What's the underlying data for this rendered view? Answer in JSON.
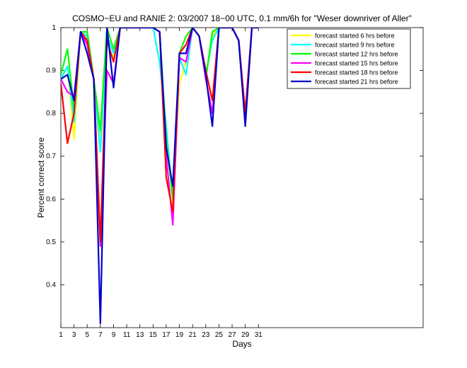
{
  "chart_data": {
    "type": "line",
    "title": "COSMO−EU and RANIE 2: 03/2007 18−00 UTC, 0.1 mm/6h for \"Weser downriver of Aller\"",
    "xlabel": "Days",
    "ylabel": "Percent correct score",
    "xlim": [
      1,
      56
    ],
    "ylim": [
      0.3,
      1.0
    ],
    "x_ticks": [
      "1",
      "3",
      "5",
      "7",
      "9",
      "11",
      "13",
      "15",
      "17",
      "19",
      "21",
      "23",
      "25",
      "27",
      "29",
      "31"
    ],
    "y_ticks": [
      "0.4",
      "0.5",
      "0.6",
      "0.7",
      "0.8",
      "0.9",
      "1"
    ],
    "legend_position": "top-right",
    "x": [
      1,
      2,
      3,
      4,
      5,
      6,
      7,
      8,
      9,
      10,
      11,
      12,
      13,
      14,
      15,
      16,
      17,
      18,
      19,
      20,
      21,
      22,
      23,
      24,
      25,
      26,
      27,
      28,
      29,
      30,
      31
    ],
    "series": [
      {
        "name": "forecast started 6 hrs before",
        "color": "#ffff00",
        "values": [
          0.88,
          0.91,
          0.74,
          0.99,
          0.98,
          0.88,
          0.75,
          0.96,
          0.93,
          1.0,
          1.0,
          1.0,
          1.0,
          1.0,
          1.0,
          0.92,
          0.77,
          0.59,
          0.87,
          0.92,
          1.0,
          0.98,
          0.89,
          0.98,
          1.0,
          1.0,
          1.0,
          0.97,
          0.79,
          1.0,
          1.0
        ]
      },
      {
        "name": "forecast started 9 hrs before",
        "color": "#00ffff",
        "values": [
          0.88,
          0.91,
          0.78,
          0.99,
          0.98,
          0.88,
          0.71,
          0.98,
          0.94,
          1.0,
          1.0,
          1.0,
          1.0,
          1.0,
          1.0,
          0.92,
          0.77,
          0.6,
          0.93,
          0.89,
          1.0,
          0.98,
          0.89,
          0.97,
          1.0,
          1.0,
          1.0,
          0.97,
          0.79,
          1.0,
          1.0
        ]
      },
      {
        "name": "forecast started 12 hrs before",
        "color": "#00ff00",
        "values": [
          0.89,
          0.95,
          0.81,
          0.99,
          0.99,
          0.88,
          0.76,
          1.0,
          0.95,
          1.0,
          1.0,
          1.0,
          1.0,
          1.0,
          1.0,
          0.99,
          0.74,
          0.6,
          0.94,
          0.98,
          1.0,
          0.98,
          0.88,
          0.99,
          1.0,
          1.0,
          1.0,
          0.97,
          0.78,
          1.0,
          1.0
        ]
      },
      {
        "name": "forecast started 15 hrs before",
        "color": "#ff00ff",
        "values": [
          0.88,
          0.85,
          0.84,
          0.99,
          0.96,
          0.88,
          0.49,
          0.9,
          0.87,
          1.0,
          1.0,
          1.0,
          1.0,
          1.0,
          1.0,
          0.99,
          0.7,
          0.54,
          0.93,
          0.92,
          1.0,
          0.98,
          0.88,
          0.8,
          1.0,
          1.0,
          1.0,
          0.97,
          0.8,
          1.0,
          1.0
        ]
      },
      {
        "name": "forecast started 18 hrs before",
        "color": "#ff0000",
        "values": [
          0.87,
          0.73,
          0.8,
          0.99,
          0.97,
          0.88,
          0.5,
          0.97,
          0.92,
          1.0,
          1.0,
          1.0,
          1.0,
          1.0,
          1.0,
          0.99,
          0.65,
          0.57,
          0.94,
          0.96,
          1.0,
          0.98,
          0.9,
          0.83,
          1.0,
          1.0,
          1.0,
          0.97,
          0.8,
          1.0,
          1.0
        ]
      },
      {
        "name": "forecast started 21 hrs before",
        "color": "#0000cc",
        "values": [
          0.88,
          0.89,
          0.83,
          0.99,
          0.94,
          0.88,
          0.31,
          1.0,
          0.86,
          1.0,
          1.0,
          1.0,
          1.0,
          1.0,
          1.0,
          0.99,
          0.72,
          0.63,
          0.94,
          0.94,
          1.0,
          0.98,
          0.89,
          0.77,
          1.0,
          1.0,
          1.0,
          0.97,
          0.77,
          1.0,
          1.0
        ]
      }
    ]
  }
}
